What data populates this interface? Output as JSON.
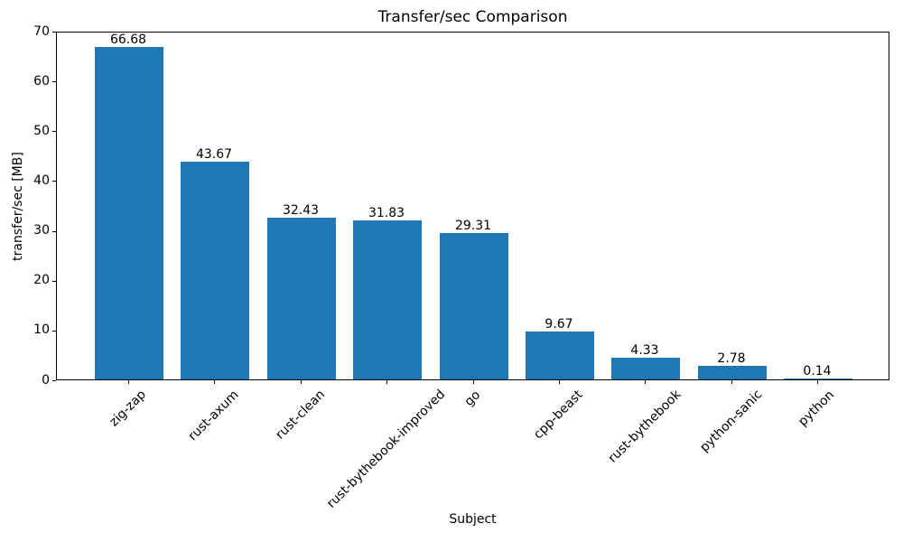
{
  "chart_data": {
    "type": "bar",
    "title": "Transfer/sec Comparison",
    "xlabel": "Subject",
    "ylabel": "transfer/sec [MB]",
    "categories": [
      "zig-zap",
      "rust-axum",
      "rust-clean",
      "rust-bythebook-improved",
      "go",
      "cpp-beast",
      "rust-bythebook",
      "python-sanic",
      "python"
    ],
    "values": [
      66.68,
      43.67,
      32.43,
      31.83,
      29.31,
      9.67,
      4.33,
      2.78,
      0.14
    ],
    "value_labels": [
      "66.68",
      "43.67",
      "32.43",
      "31.83",
      "29.31",
      "9.67",
      "4.33",
      "2.78",
      "0.14"
    ],
    "yticks": [
      0,
      10,
      20,
      30,
      40,
      50,
      60,
      70
    ],
    "ylim": [
      0,
      70
    ],
    "x_tick_rotation_deg": 45,
    "grid": false,
    "legend": "none",
    "colors": {
      "bar": "#1f77b4",
      "text": "#000000",
      "background": "#ffffff",
      "spine": "#000000"
    }
  }
}
